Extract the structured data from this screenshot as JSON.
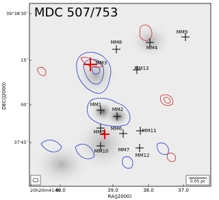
{
  "title": "MDC 507/753",
  "x_axis": {
    "label": "RA(J2000)",
    "ticks": [
      "20h20m41.0s",
      "40.0",
      "39.0",
      "38.0",
      "37.0"
    ]
  },
  "y_axis": {
    "label": "DEC(J2000)",
    "ticks": [
      "39°38′30″",
      "15″",
      "00″",
      "37′45″"
    ]
  },
  "sources": [
    "MM1",
    "MM2",
    "MM3",
    "MM4",
    "MM5",
    "MM6",
    "MM7",
    "MM8",
    "MM9",
    "MM10",
    "MM11",
    "MM12",
    "MM13"
  ],
  "scale_bar": "0.05 pc"
}
